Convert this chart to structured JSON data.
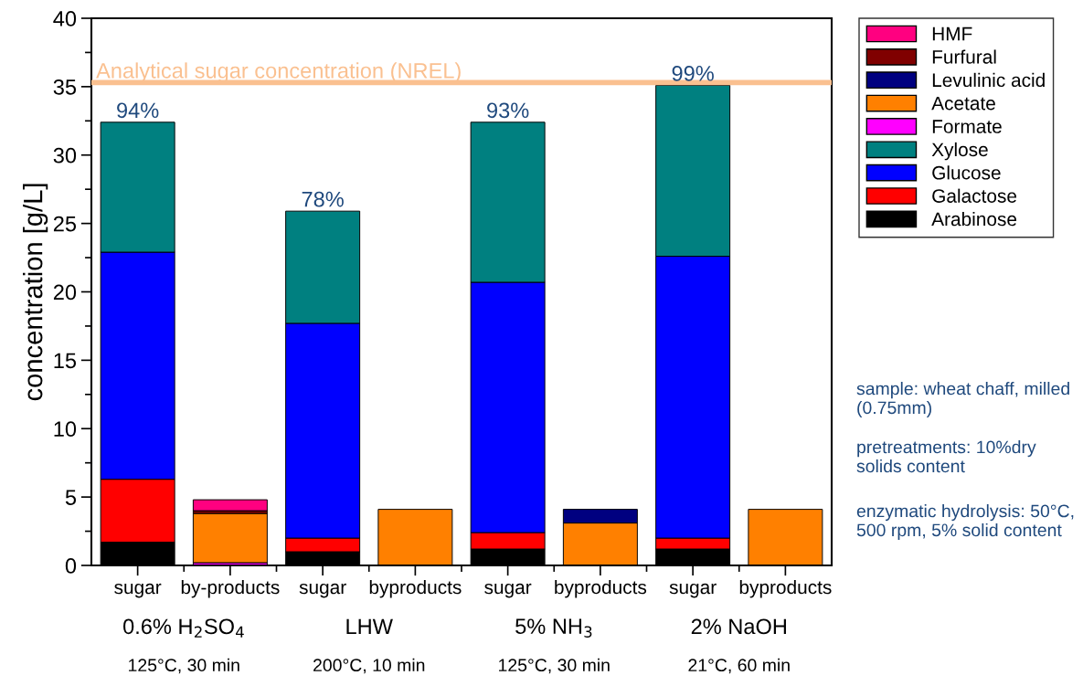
{
  "chart_data": {
    "type": "bar",
    "stacked": true,
    "ylabel": "concentration [g/L]",
    "categories": [
      "sugar",
      "by-products",
      "sugar",
      "byproducts",
      "sugar",
      "byproducts",
      "sugar",
      "byproducts"
    ],
    "series": [
      {
        "name": "Arabinose",
        "color": "#000000",
        "values": [
          1.7,
          null,
          1.0,
          null,
          1.2,
          null,
          1.2,
          null
        ]
      },
      {
        "name": "Galactose",
        "color": "#ff0000",
        "values": [
          4.6,
          null,
          1.0,
          null,
          1.2,
          null,
          0.8,
          null
        ]
      },
      {
        "name": "Glucose",
        "color": "#0000ff",
        "values": [
          16.6,
          null,
          15.7,
          null,
          18.3,
          null,
          20.6,
          null
        ]
      },
      {
        "name": "Xylose",
        "color": "#008080",
        "values": [
          9.5,
          null,
          8.2,
          null,
          11.7,
          null,
          12.5,
          null
        ]
      },
      {
        "name": "Formate",
        "color": "#ff00ff",
        "values": [
          null,
          0.2,
          null,
          null,
          null,
          null,
          null,
          null
        ]
      },
      {
        "name": "Acetate",
        "color": "#ff8000",
        "values": [
          null,
          3.6,
          null,
          4.1,
          null,
          3.1,
          null,
          4.1
        ]
      },
      {
        "name": "Levulinic acid",
        "color": "#000080",
        "values": [
          null,
          null,
          null,
          null,
          null,
          1.0,
          null,
          null
        ]
      },
      {
        "name": "Furfural",
        "color": "#800000",
        "values": [
          null,
          0.2,
          null,
          null,
          null,
          null,
          null,
          null
        ]
      },
      {
        "name": "HMF",
        "color": "#ff0080",
        "values": [
          null,
          0.8,
          null,
          null,
          null,
          null,
          null,
          null
        ]
      }
    ],
    "ylim": [
      0,
      40
    ],
    "yticks": [
      0,
      5,
      10,
      15,
      20,
      25,
      30,
      35,
      40
    ],
    "ref_lines": [
      {
        "axis": "y",
        "value": 35.3,
        "label": "Analytical sugar concentration (NREL)",
        "color": "#fac090"
      }
    ],
    "legend": "top right",
    "annotations": [
      {
        "text": "94%",
        "y": 32.4
      },
      {
        "text": "78%",
        "y": 25.9
      },
      {
        "text": "93%",
        "y": 32.4
      },
      {
        "text": "99%",
        "y": 35.1
      },
      "0.6% H$_{2}$SO$_{4}$\n125°C, 30 min",
      "LHW\n200°C, 10 min",
      "5% NH$_{3}$\n125°C, 30 min",
      "2% NaOH\n21°C, 60 min",
      "sample: wheat chaff, milled (0.75mm)",
      "pretreatments: 10%dry solids content",
      "enzymatic hydrolysis: 50°C, 500 rpm, 5% solid content"
    ]
  }
}
